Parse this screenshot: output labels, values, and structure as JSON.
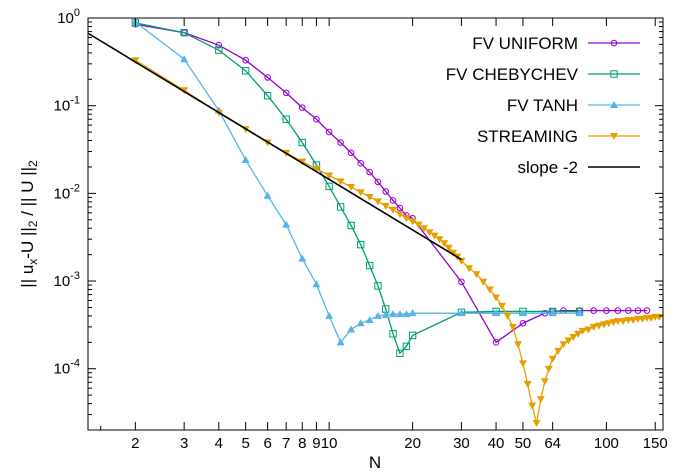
{
  "chart_data": {
    "type": "line",
    "xlabel": "N",
    "ylabel": "|| u_x-U ||_2 / || U ||_2",
    "xscale": "log",
    "yscale": "log",
    "xlim": [
      1.35,
      160
    ],
    "ylim": [
      2e-05,
      1
    ],
    "x_ticks": [
      {
        "value": 2,
        "label": "2"
      },
      {
        "value": 3,
        "label": "3"
      },
      {
        "value": 4,
        "label": "4"
      },
      {
        "value": 5,
        "label": "5"
      },
      {
        "value": 6,
        "label": "6"
      },
      {
        "value": 7,
        "label": "7"
      },
      {
        "value": 8,
        "label": "8"
      },
      {
        "value": 9,
        "label": "9"
      },
      {
        "value": 10,
        "label": "10"
      },
      {
        "value": 20,
        "label": "20"
      },
      {
        "value": 30,
        "label": "30"
      },
      {
        "value": 40,
        "label": "40"
      },
      {
        "value": 50,
        "label": "50"
      },
      {
        "value": 64,
        "label": "64"
      },
      {
        "value": 100,
        "label": "100"
      },
      {
        "value": 150,
        "label": "150"
      }
    ],
    "y_ticks": [
      {
        "value": 1,
        "mant": "10",
        "exp": "0"
      },
      {
        "value": 0.1,
        "mant": "10",
        "exp": "-1"
      },
      {
        "value": 0.01,
        "mant": "10",
        "exp": "-2"
      },
      {
        "value": 0.001,
        "mant": "10",
        "exp": "-3"
      },
      {
        "value": 0.0001,
        "mant": "10",
        "exp": "-4"
      }
    ],
    "grid": false,
    "legend_position": "top-right",
    "series": [
      {
        "name": "FV UNIFORM",
        "color": "#9400d3",
        "marker": "circle",
        "points": [
          [
            2,
            0.85
          ],
          [
            3,
            0.68
          ],
          [
            4,
            0.49
          ],
          [
            5,
            0.33
          ],
          [
            6,
            0.21
          ],
          [
            7,
            0.14
          ],
          [
            8,
            0.095
          ],
          [
            9,
            0.07
          ],
          [
            10,
            0.05
          ],
          [
            11,
            0.038
          ],
          [
            12,
            0.029
          ],
          [
            13,
            0.022
          ],
          [
            14,
            0.0175
          ],
          [
            15,
            0.0135
          ],
          [
            16,
            0.0105
          ],
          [
            17,
            0.0083
          ],
          [
            18,
            0.0068
          ],
          [
            19,
            0.0056
          ],
          [
            20,
            0.0052
          ],
          [
            30,
            0.00098
          ],
          [
            40,
            0.0002
          ],
          [
            50,
            0.00033
          ],
          [
            60,
            0.00043
          ],
          [
            64,
            0.00045
          ],
          [
            70,
            0.00046
          ],
          [
            80,
            0.00046
          ],
          [
            90,
            0.00046
          ],
          [
            100,
            0.00046
          ],
          [
            110,
            0.00046
          ],
          [
            120,
            0.00046
          ],
          [
            130,
            0.00046
          ],
          [
            140,
            0.00046
          ]
        ]
      },
      {
        "name": "FV CHEBYCHEV",
        "color": "#009e73",
        "marker": "square",
        "points": [
          [
            2,
            0.88
          ],
          [
            3,
            0.68
          ],
          [
            4,
            0.43
          ],
          [
            5,
            0.25
          ],
          [
            6,
            0.13
          ],
          [
            7,
            0.07
          ],
          [
            8,
            0.038
          ],
          [
            9,
            0.021
          ],
          [
            10,
            0.012
          ],
          [
            11,
            0.007
          ],
          [
            12,
            0.0043
          ],
          [
            13,
            0.0026
          ],
          [
            14,
            0.0015
          ],
          [
            15,
            0.00088
          ],
          [
            16,
            0.00048
          ],
          [
            17,
            0.00025
          ],
          [
            18,
            0.00015
          ],
          [
            19,
            0.00018
          ],
          [
            20,
            0.00024
          ],
          [
            30,
            0.00044
          ],
          [
            40,
            0.00045
          ],
          [
            50,
            0.00045
          ],
          [
            64,
            0.00045
          ],
          [
            80,
            0.00045
          ]
        ]
      },
      {
        "name": "FV TANH",
        "color": "#56b4e9",
        "marker": "triangle",
        "points": [
          [
            2,
            0.9
          ],
          [
            3,
            0.34
          ],
          [
            4,
            0.088
          ],
          [
            5,
            0.024
          ],
          [
            6,
            0.0094
          ],
          [
            7,
            0.0044
          ],
          [
            8,
            0.0018
          ],
          [
            9,
            0.00092
          ],
          [
            10,
            0.0004
          ],
          [
            11,
            0.0002
          ],
          [
            12,
            0.00028
          ],
          [
            13,
            0.00033
          ],
          [
            14,
            0.00036
          ],
          [
            15,
            0.0004
          ],
          [
            16,
            0.00041
          ],
          [
            17,
            0.00042
          ],
          [
            18,
            0.00042
          ],
          [
            19,
            0.00042
          ],
          [
            20,
            0.00043
          ],
          [
            30,
            0.00043
          ],
          [
            40,
            0.00043
          ],
          [
            50,
            0.00043
          ],
          [
            64,
            0.00043
          ],
          [
            80,
            0.00043
          ]
        ]
      },
      {
        "name": "STREAMING",
        "color": "#e69f00",
        "marker": "triangle-down",
        "points": [
          [
            2,
            0.33
          ],
          [
            3,
            0.15
          ],
          [
            4,
            0.083
          ],
          [
            5,
            0.054
          ],
          [
            6,
            0.038
          ],
          [
            7,
            0.029
          ],
          [
            8,
            0.023
          ],
          [
            9,
            0.019
          ],
          [
            10,
            0.016
          ],
          [
            11,
            0.0137
          ],
          [
            12,
            0.0118
          ],
          [
            13,
            0.0103
          ],
          [
            14,
            0.0091
          ],
          [
            15,
            0.0081
          ],
          [
            16,
            0.0072
          ],
          [
            17,
            0.0065
          ],
          [
            18,
            0.0058
          ],
          [
            19,
            0.0052
          ],
          [
            20,
            0.0048
          ],
          [
            21,
            0.0044
          ],
          [
            22,
            0.004
          ],
          [
            23,
            0.0036
          ],
          [
            24,
            0.0033
          ],
          [
            25,
            0.003
          ],
          [
            26,
            0.0027
          ],
          [
            27,
            0.0024
          ],
          [
            28,
            0.0021
          ],
          [
            29,
            0.0019
          ],
          [
            30,
            0.0017
          ],
          [
            32,
            0.0014
          ],
          [
            34,
            0.0012
          ],
          [
            36,
            0.00098
          ],
          [
            38,
            0.0008
          ],
          [
            40,
            0.00065
          ],
          [
            42,
            0.00052
          ],
          [
            44,
            0.0004
          ],
          [
            46,
            0.0003
          ],
          [
            48,
            0.00019
          ],
          [
            50,
            0.000115
          ],
          [
            52,
            6.7e-05
          ],
          [
            54,
            3.8e-05
          ],
          [
            56,
            2.4e-05
          ],
          [
            58,
            4.5e-05
          ],
          [
            60,
            7.2e-05
          ],
          [
            62,
            0.0001
          ],
          [
            64,
            0.00013
          ],
          [
            67,
            0.00016
          ],
          [
            70,
            0.00019
          ],
          [
            73,
            0.00021
          ],
          [
            76,
            0.00023
          ],
          [
            79,
            0.00025
          ],
          [
            82,
            0.00027
          ],
          [
            86,
            0.00028
          ],
          [
            90,
            0.0003
          ],
          [
            94,
            0.00031
          ],
          [
            98,
            0.00032
          ],
          [
            102,
            0.00033
          ],
          [
            106,
            0.00034
          ],
          [
            110,
            0.00035
          ],
          [
            115,
            0.00035
          ],
          [
            120,
            0.00036
          ],
          [
            125,
            0.00036
          ],
          [
            130,
            0.00037
          ],
          [
            135,
            0.00037
          ],
          [
            140,
            0.00038
          ],
          [
            145,
            0.00038
          ],
          [
            150,
            0.00039
          ],
          [
            155,
            0.00039
          ]
        ]
      },
      {
        "name": "slope -2",
        "color": "#000000",
        "marker": "none",
        "points": [
          [
            1.35,
            0.67
          ],
          [
            30,
            0.00176
          ]
        ]
      }
    ]
  }
}
